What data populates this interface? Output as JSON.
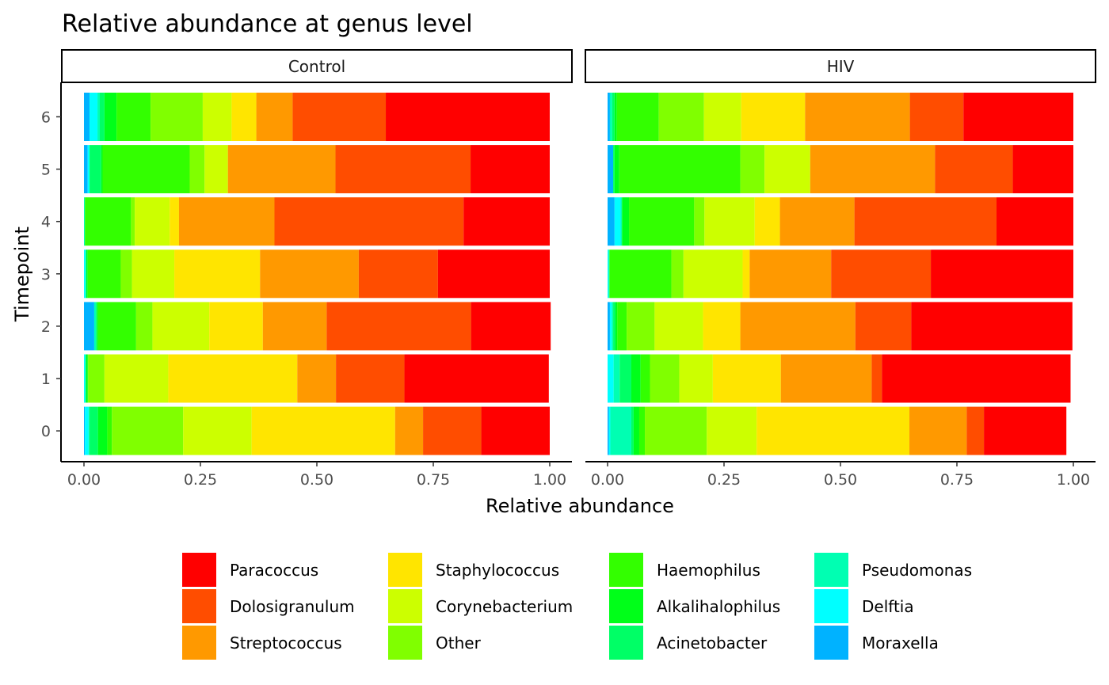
{
  "chart_data": {
    "type": "bar",
    "orientation": "horizontal",
    "stacked": true,
    "title": "Relative abundance at genus level",
    "xlabel": "Relative abundance",
    "ylabel": "Timepoint",
    "xlim": [
      0,
      1
    ],
    "x_ticks": [
      "0.00",
      "0.25",
      "0.50",
      "0.75",
      "1.00"
    ],
    "x_tick_values": [
      0,
      0.25,
      0.5,
      0.75,
      1
    ],
    "categories": [
      "0",
      "1",
      "2",
      "3",
      "4",
      "5",
      "6"
    ],
    "legend_position": "bottom",
    "grid": false,
    "stack_order": [
      "Moraxella",
      "Delftia",
      "Pseudomonas",
      "Acinetobacter",
      "Alkalihalophilus",
      "Haemophilus",
      "Other",
      "Corynebacterium",
      "Staphylococcus",
      "Streptococcus",
      "Dolosigranulum",
      "Paracoccus"
    ],
    "legend": {
      "items": [
        {
          "label": "Paracoccus",
          "color": "#FF0000"
        },
        {
          "label": "Dolosigranulum",
          "color": "#FF4D00"
        },
        {
          "label": "Streptococcus",
          "color": "#FF9900"
        },
        {
          "label": "Staphylococcus",
          "color": "#FFE500"
        },
        {
          "label": "Corynebacterium",
          "color": "#CCFF00"
        },
        {
          "label": "Other",
          "color": "#80FF00"
        },
        {
          "label": "Haemophilus",
          "color": "#33FF00"
        },
        {
          "label": "Alkalihalophilus",
          "color": "#00FF19"
        },
        {
          "label": "Acinetobacter",
          "color": "#00FF66"
        },
        {
          "label": "Pseudomonas",
          "color": "#00FFB2"
        },
        {
          "label": "Delftia",
          "color": "#00FFFF"
        },
        {
          "label": "Moraxella",
          "color": "#00B2FF"
        }
      ]
    },
    "panels": [
      {
        "name": "Control",
        "rows": [
          {
            "timepoint": "0",
            "Moraxella": 0.002,
            "Delftia": 0.008,
            "Pseudomonas": 0.002,
            "Acinetobacter": 0.018,
            "Alkalihalophilus": 0.02,
            "Haemophilus": 0.01,
            "Other": 0.153,
            "Corynebacterium": 0.147,
            "Staphylococcus": 0.308,
            "Streptococcus": 0.06,
            "Dolosigranulum": 0.125,
            "Paracoccus": 0.147
          },
          {
            "timepoint": "1",
            "Moraxella": 0.0,
            "Delftia": 0.003,
            "Pseudomonas": 0.0,
            "Acinetobacter": 0.002,
            "Alkalihalophilus": 0.003,
            "Haemophilus": 0.001,
            "Other": 0.035,
            "Corynebacterium": 0.137,
            "Staphylococcus": 0.277,
            "Streptococcus": 0.083,
            "Dolosigranulum": 0.147,
            "Paracoccus": 0.31
          },
          {
            "timepoint": "2",
            "Moraxella": 0.022,
            "Delftia": 0.0,
            "Pseudomonas": 0.004,
            "Acinetobacter": 0.002,
            "Alkalihalophilus": 0.002,
            "Haemophilus": 0.082,
            "Other": 0.035,
            "Corynebacterium": 0.122,
            "Staphylococcus": 0.115,
            "Streptococcus": 0.137,
            "Dolosigranulum": 0.31,
            "Paracoccus": 0.171
          },
          {
            "timepoint": "3",
            "Moraxella": 0.0,
            "Delftia": 0.003,
            "Pseudomonas": 0.002,
            "Acinetobacter": 0.0,
            "Alkalihalophilus": 0.003,
            "Haemophilus": 0.071,
            "Other": 0.024,
            "Corynebacterium": 0.091,
            "Staphylococcus": 0.184,
            "Streptococcus": 0.212,
            "Dolosigranulum": 0.17,
            "Paracoccus": 0.24
          },
          {
            "timepoint": "4",
            "Moraxella": 0.0,
            "Delftia": 0.0,
            "Pseudomonas": 0.002,
            "Acinetobacter": 0.0,
            "Alkalihalophilus": 0.0,
            "Haemophilus": 0.099,
            "Other": 0.008,
            "Corynebacterium": 0.075,
            "Staphylococcus": 0.02,
            "Streptococcus": 0.205,
            "Dolosigranulum": 0.406,
            "Paracoccus": 0.185
          },
          {
            "timepoint": "5",
            "Moraxella": 0.008,
            "Delftia": 0.004,
            "Pseudomonas": 0.0,
            "Acinetobacter": 0.025,
            "Alkalihalophilus": 0.003,
            "Haemophilus": 0.187,
            "Other": 0.032,
            "Corynebacterium": 0.05,
            "Staphylococcus": 0.0,
            "Streptococcus": 0.231,
            "Dolosigranulum": 0.29,
            "Paracoccus": 0.17
          },
          {
            "timepoint": "6",
            "Moraxella": 0.012,
            "Delftia": 0.017,
            "Pseudomonas": 0.005,
            "Acinetobacter": 0.01,
            "Alkalihalophilus": 0.026,
            "Haemophilus": 0.073,
            "Other": 0.112,
            "Corynebacterium": 0.062,
            "Staphylococcus": 0.053,
            "Streptococcus": 0.078,
            "Dolosigranulum": 0.2,
            "Paracoccus": 0.352
          }
        ]
      },
      {
        "name": "HIV",
        "rows": [
          {
            "timepoint": "0",
            "Moraxella": 0.003,
            "Delftia": 0.003,
            "Pseudomonas": 0.045,
            "Acinetobacter": 0.005,
            "Alkalihalophilus": 0.012,
            "Haemophilus": 0.012,
            "Other": 0.133,
            "Corynebacterium": 0.107,
            "Staphylococcus": 0.328,
            "Streptococcus": 0.123,
            "Dolosigranulum": 0.037,
            "Paracoccus": 0.177
          },
          {
            "timepoint": "1",
            "Moraxella": 0.0,
            "Delftia": 0.013,
            "Pseudomonas": 0.013,
            "Acinetobacter": 0.025,
            "Alkalihalophilus": 0.02,
            "Haemophilus": 0.02,
            "Other": 0.063,
            "Corynebacterium": 0.072,
            "Staphylococcus": 0.146,
            "Streptococcus": 0.195,
            "Dolosigranulum": 0.022,
            "Paracoccus": 0.405
          },
          {
            "timepoint": "2",
            "Moraxella": 0.005,
            "Delftia": 0.004,
            "Pseudomonas": 0.003,
            "Acinetobacter": 0.005,
            "Alkalihalophilus": 0.004,
            "Haemophilus": 0.02,
            "Other": 0.06,
            "Corynebacterium": 0.104,
            "Staphylococcus": 0.08,
            "Streptococcus": 0.247,
            "Dolosigranulum": 0.12,
            "Paracoccus": 0.346
          },
          {
            "timepoint": "3",
            "Moraxella": 0.0,
            "Delftia": 0.002,
            "Pseudomonas": 0.002,
            "Acinetobacter": 0.0,
            "Alkalihalophilus": 0.0,
            "Haemophilus": 0.133,
            "Other": 0.026,
            "Corynebacterium": 0.127,
            "Staphylococcus": 0.015,
            "Streptococcus": 0.175,
            "Dolosigranulum": 0.214,
            "Paracoccus": 0.306
          },
          {
            "timepoint": "4",
            "Moraxella": 0.015,
            "Delftia": 0.013,
            "Pseudomonas": 0.003,
            "Acinetobacter": 0.0,
            "Alkalihalophilus": 0.015,
            "Haemophilus": 0.14,
            "Other": 0.022,
            "Corynebacterium": 0.108,
            "Staphylococcus": 0.054,
            "Streptococcus": 0.16,
            "Dolosigranulum": 0.305,
            "Paracoccus": 0.165
          },
          {
            "timepoint": "5",
            "Moraxella": 0.012,
            "Delftia": 0.0,
            "Pseudomonas": 0.0,
            "Acinetobacter": 0.003,
            "Alkalihalophilus": 0.01,
            "Haemophilus": 0.26,
            "Other": 0.052,
            "Corynebacterium": 0.098,
            "Staphylococcus": 0.0,
            "Streptococcus": 0.268,
            "Dolosigranulum": 0.167,
            "Paracoccus": 0.13
          },
          {
            "timepoint": "6",
            "Moraxella": 0.005,
            "Delftia": 0.0,
            "Pseudomonas": 0.005,
            "Acinetobacter": 0.005,
            "Alkalihalophilus": 0.005,
            "Haemophilus": 0.09,
            "Other": 0.097,
            "Corynebacterium": 0.08,
            "Staphylococcus": 0.137,
            "Streptococcus": 0.225,
            "Dolosigranulum": 0.115,
            "Paracoccus": 0.236
          }
        ]
      }
    ]
  }
}
